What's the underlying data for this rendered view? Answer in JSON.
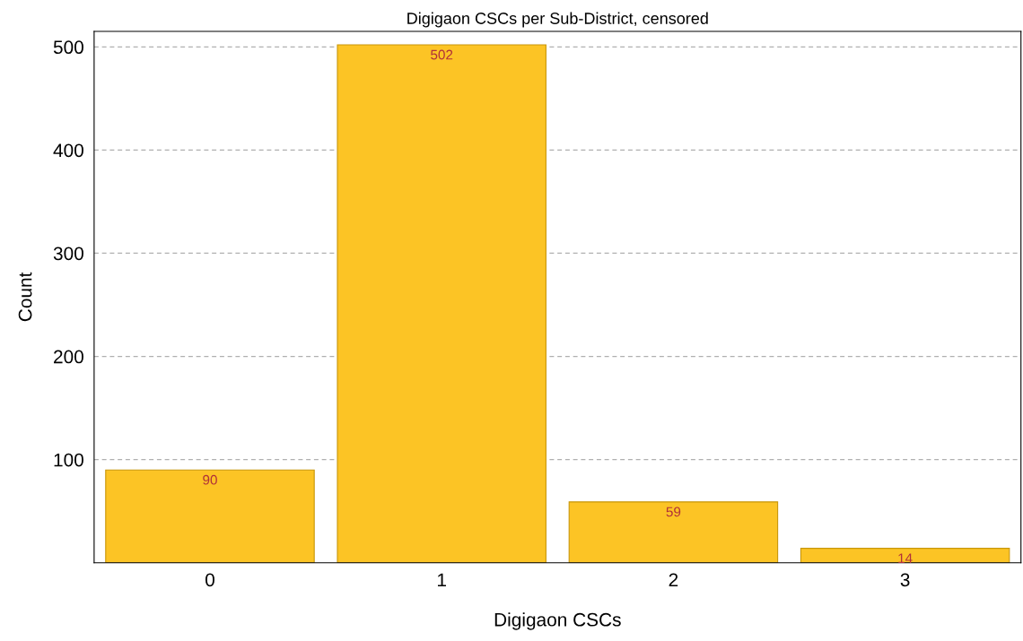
{
  "chart_data": {
    "type": "bar",
    "title": "Digigaon CSCs per Sub-District, censored",
    "xlabel": "Digigaon CSCs",
    "ylabel": "Count",
    "categories": [
      "0",
      "1",
      "2",
      "3"
    ],
    "values": [
      90,
      502,
      59,
      14
    ],
    "color": "#fcc425",
    "ylim": [
      0,
      515
    ],
    "yticks": [
      100,
      200,
      300,
      400,
      500
    ],
    "grid": "y",
    "data_labels": true
  }
}
